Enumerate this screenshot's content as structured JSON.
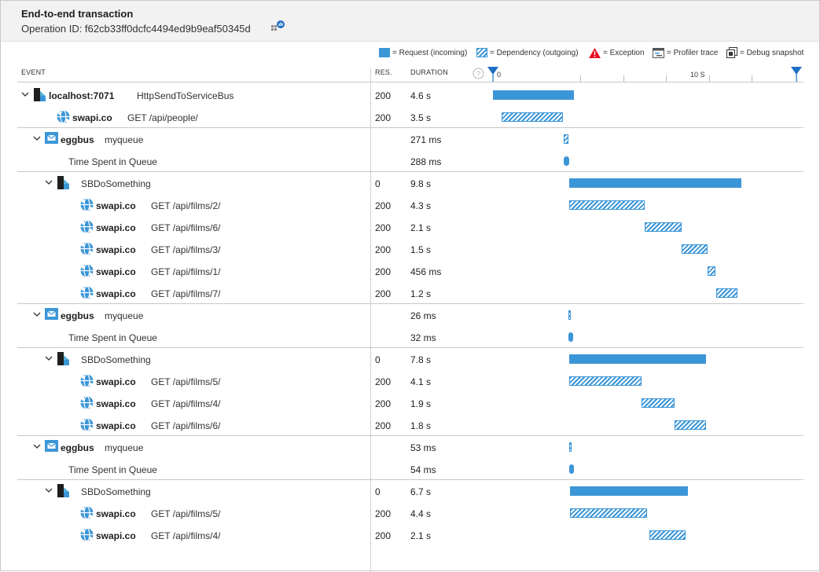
{
  "header": {
    "title": "End-to-end transaction",
    "operation_id": "Operation ID: f62cb33ff0dcfc4494ed9b9eaf50345d"
  },
  "legend": {
    "request": "= Request (incoming)",
    "dependency": "= Dependency (outgoing)",
    "exception": "= Exception",
    "profiler": "= Profiler trace",
    "snapshot": "= Debug snapshot"
  },
  "columns": {
    "event": "EVENT",
    "res": "RES.",
    "duration": "DURATION"
  },
  "timeline": {
    "start_label": "0",
    "mid_label": "10 S",
    "total_seconds": 17.3
  },
  "colors": {
    "request": "#3b96d7",
    "header_bg": "#f2f2f2",
    "exception": "#e81123"
  },
  "rows": [
    {
      "indent": 0,
      "chevron": true,
      "icon": "function-app-icon",
      "name": "localhost:7071",
      "detail": "HttpSendToServiceBus",
      "res": "200",
      "duration": "4.6 s",
      "kind": "req",
      "start_s": 0,
      "dur_s": 4.6
    },
    {
      "indent": 1,
      "chevron": false,
      "icon": "web-dependency-icon",
      "name": "swapi.co",
      "detail": "GET /api/people/",
      "res": "200",
      "duration": "3.5 s",
      "kind": "dep",
      "start_s": 0.5,
      "dur_s": 3.5,
      "group_end": true
    },
    {
      "indent": 1,
      "chevron": true,
      "icon": "service-bus-icon",
      "name": "eggbus",
      "detail": "myqueue",
      "res": "",
      "duration": "271 ms",
      "kind": "dep",
      "start_s": 4.05,
      "dur_s": 0.271
    },
    {
      "indent": 2,
      "chevron": false,
      "icon": "",
      "name": "",
      "detail": "Time Spent in Queue",
      "res": "",
      "duration": "288 ms",
      "kind": "queue",
      "start_s": 4.05,
      "dur_s": 0.288,
      "group_end": true
    },
    {
      "indent": 2,
      "chevron": true,
      "icon": "function-app-icon",
      "name": "",
      "detail": "SBDoSomething",
      "res": "0",
      "duration": "9.8 s",
      "kind": "req",
      "start_s": 4.35,
      "dur_s": 9.8
    },
    {
      "indent": 3,
      "chevron": false,
      "icon": "web-dependency-icon",
      "name": "swapi.co",
      "detail": "GET /api/films/2/",
      "res": "200",
      "duration": "4.3 s",
      "kind": "dep",
      "start_s": 4.35,
      "dur_s": 4.3
    },
    {
      "indent": 3,
      "chevron": false,
      "icon": "web-dependency-icon",
      "name": "swapi.co",
      "detail": "GET /api/films/6/",
      "res": "200",
      "duration": "2.1 s",
      "kind": "dep",
      "start_s": 8.65,
      "dur_s": 2.1
    },
    {
      "indent": 3,
      "chevron": false,
      "icon": "web-dependency-icon",
      "name": "swapi.co",
      "detail": "GET /api/films/3/",
      "res": "200",
      "duration": "1.5 s",
      "kind": "dep",
      "start_s": 10.75,
      "dur_s": 1.5
    },
    {
      "indent": 3,
      "chevron": false,
      "icon": "web-dependency-icon",
      "name": "swapi.co",
      "detail": "GET /api/films/1/",
      "res": "200",
      "duration": "456 ms",
      "kind": "dep",
      "start_s": 12.25,
      "dur_s": 0.456
    },
    {
      "indent": 3,
      "chevron": false,
      "icon": "web-dependency-icon",
      "name": "swapi.co",
      "detail": "GET /api/films/7/",
      "res": "200",
      "duration": "1.2 s",
      "kind": "dep",
      "start_s": 12.75,
      "dur_s": 1.2,
      "group_end": true
    },
    {
      "indent": 1,
      "chevron": true,
      "icon": "service-bus-icon",
      "name": "eggbus",
      "detail": "myqueue",
      "res": "",
      "duration": "26 ms",
      "kind": "dep",
      "start_s": 4.3,
      "dur_s": 0.026
    },
    {
      "indent": 2,
      "chevron": false,
      "icon": "",
      "name": "",
      "detail": "Time Spent in Queue",
      "res": "",
      "duration": "32 ms",
      "kind": "queue",
      "start_s": 4.3,
      "dur_s": 0.032,
      "group_end": true
    },
    {
      "indent": 2,
      "chevron": true,
      "icon": "function-app-icon",
      "name": "",
      "detail": "SBDoSomething",
      "res": "0",
      "duration": "7.8 s",
      "kind": "req",
      "start_s": 4.35,
      "dur_s": 7.8
    },
    {
      "indent": 3,
      "chevron": false,
      "icon": "web-dependency-icon",
      "name": "swapi.co",
      "detail": "GET /api/films/5/",
      "res": "200",
      "duration": "4.1 s",
      "kind": "dep",
      "start_s": 4.35,
      "dur_s": 4.1
    },
    {
      "indent": 3,
      "chevron": false,
      "icon": "web-dependency-icon",
      "name": "swapi.co",
      "detail": "GET /api/films/4/",
      "res": "200",
      "duration": "1.9 s",
      "kind": "dep",
      "start_s": 8.45,
      "dur_s": 1.9
    },
    {
      "indent": 3,
      "chevron": false,
      "icon": "web-dependency-icon",
      "name": "swapi.co",
      "detail": "GET /api/films/6/",
      "res": "200",
      "duration": "1.8 s",
      "kind": "dep",
      "start_s": 10.35,
      "dur_s": 1.8,
      "group_end": true
    },
    {
      "indent": 1,
      "chevron": true,
      "icon": "service-bus-icon",
      "name": "eggbus",
      "detail": "myqueue",
      "res": "",
      "duration": "53 ms",
      "kind": "dep",
      "start_s": 4.35,
      "dur_s": 0.053
    },
    {
      "indent": 2,
      "chevron": false,
      "icon": "",
      "name": "",
      "detail": "Time Spent in Queue",
      "res": "",
      "duration": "54 ms",
      "kind": "queue",
      "start_s": 4.35,
      "dur_s": 0.054,
      "group_end": true
    },
    {
      "indent": 2,
      "chevron": true,
      "icon": "function-app-icon",
      "name": "",
      "detail": "SBDoSomething",
      "res": "0",
      "duration": "6.7 s",
      "kind": "req",
      "start_s": 4.4,
      "dur_s": 6.7
    },
    {
      "indent": 3,
      "chevron": false,
      "icon": "web-dependency-icon",
      "name": "swapi.co",
      "detail": "GET /api/films/5/",
      "res": "200",
      "duration": "4.4 s",
      "kind": "dep",
      "start_s": 4.4,
      "dur_s": 4.4
    },
    {
      "indent": 3,
      "chevron": false,
      "icon": "web-dependency-icon",
      "name": "swapi.co",
      "detail": "GET /api/films/4/",
      "res": "200",
      "duration": "2.1 s",
      "kind": "dep",
      "start_s": 8.9,
      "dur_s": 2.1
    }
  ]
}
